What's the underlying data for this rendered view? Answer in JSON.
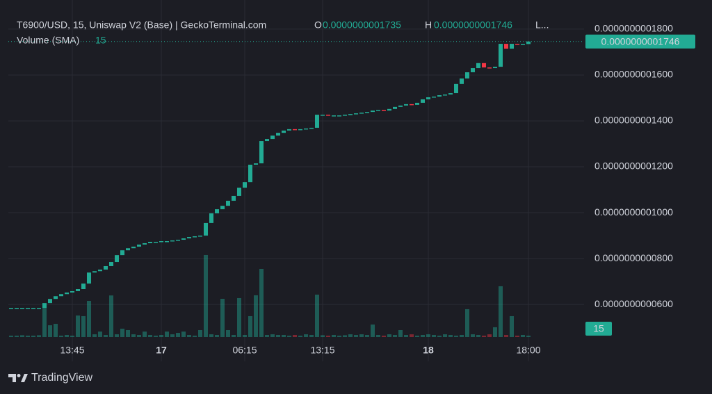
{
  "chart_data": {
    "type": "candlestick",
    "legend_text": {
      "symbol": "T6900/USD, 15, Uniswap V2 (Base) | GeckoTerminal.com",
      "o_label": "O",
      "open": "0.0000000001735",
      "h_label": "H",
      "high": "0.0000000001746",
      "l_label": "L...",
      "volume_label": "Volume (SMA)"
    },
    "last_price_label": "0.0000000001746",
    "categories": [
      null,
      null,
      null,
      null,
      null,
      null,
      null,
      null,
      null,
      null,
      null,
      "13:45",
      null,
      null,
      null,
      null,
      null,
      null,
      null,
      null,
      null,
      null,
      null,
      null,
      null,
      null,
      null,
      "17",
      null,
      null,
      null,
      null,
      null,
      null,
      null,
      null,
      null,
      null,
      null,
      null,
      null,
      null,
      "06:15",
      null,
      null,
      null,
      null,
      null,
      null,
      null,
      null,
      null,
      null,
      null,
      null,
      null,
      "13:15",
      null,
      null,
      null,
      null,
      null,
      null,
      null,
      null,
      null,
      null,
      null,
      null,
      null,
      null,
      null,
      null,
      null,
      null,
      "18",
      null,
      null,
      null,
      null,
      null,
      null,
      null,
      null,
      null,
      null,
      null,
      null,
      null,
      null,
      null,
      null,
      null,
      "18:00"
    ],
    "open": [
      5.85e-11,
      5.85e-11,
      5.85e-11,
      5.85e-11,
      5.85e-11,
      5.85e-11,
      5.85e-11,
      6.06e-11,
      6.24e-11,
      6.36e-11,
      6.45e-11,
      6.52e-11,
      6.58e-11,
      6.67e-11,
      6.91e-11,
      7.39e-11,
      7.45e-11,
      7.52e-11,
      7.67e-11,
      7.85e-11,
      8.15e-11,
      8.36e-11,
      8.45e-11,
      8.52e-11,
      8.61e-11,
      8.67e-11,
      8.73e-11,
      8.73e-11,
      8.76e-11,
      8.76e-11,
      8.79e-11,
      8.82e-11,
      8.88e-11,
      8.94e-11,
      8.97e-11,
      9e-11,
      9.55e-11,
      9.97e-11,
      1.015e-10,
      1.03e-10,
      1.052e-10,
      1.073e-10,
      1.109e-10,
      1.133e-10,
      1.209e-10,
      1.215e-10,
      1.312e-10,
      1.321e-10,
      1.336e-10,
      1.348e-10,
      1.358e-10,
      1.364e-10,
      1.361e-10,
      1.364e-10,
      1.367e-10,
      1.37e-10,
      1.427e-10,
      1.427e-10,
      1.424e-10,
      1.424e-10,
      1.424e-10,
      1.427e-10,
      1.43e-10,
      1.433e-10,
      1.436e-10,
      1.439e-10,
      1.445e-10,
      1.448e-10,
      1.445e-10,
      1.452e-10,
      1.461e-10,
      1.467e-10,
      1.473e-10,
      1.47e-10,
      1.479e-10,
      1.494e-10,
      1.503e-10,
      1.506e-10,
      1.512e-10,
      1.515e-10,
      1.521e-10,
      1.561e-10,
      1.585e-10,
      1.612e-10,
      1.63e-10,
      1.652e-10,
      1.633e-10,
      1.63e-10,
      1.636e-10,
      1.736e-10,
      1.715e-10,
      1.736e-10,
      1.735e-10,
      1.735e-10
    ],
    "close": [
      5.85e-11,
      5.85e-11,
      5.85e-11,
      5.85e-11,
      5.85e-11,
      5.85e-11,
      6.06e-11,
      6.24e-11,
      6.36e-11,
      6.45e-11,
      6.52e-11,
      6.58e-11,
      6.67e-11,
      6.91e-11,
      7.39e-11,
      7.45e-11,
      7.52e-11,
      7.67e-11,
      7.85e-11,
      8.15e-11,
      8.36e-11,
      8.45e-11,
      8.52e-11,
      8.61e-11,
      8.67e-11,
      8.73e-11,
      8.73e-11,
      8.76e-11,
      8.76e-11,
      8.79e-11,
      8.82e-11,
      8.88e-11,
      8.94e-11,
      8.97e-11,
      9e-11,
      9.55e-11,
      9.97e-11,
      1.015e-10,
      1.03e-10,
      1.052e-10,
      1.073e-10,
      1.109e-10,
      1.133e-10,
      1.209e-10,
      1.215e-10,
      1.312e-10,
      1.321e-10,
      1.336e-10,
      1.348e-10,
      1.358e-10,
      1.364e-10,
      1.361e-10,
      1.364e-10,
      1.367e-10,
      1.37e-10,
      1.427e-10,
      1.427e-10,
      1.424e-10,
      1.424e-10,
      1.424e-10,
      1.427e-10,
      1.43e-10,
      1.433e-10,
      1.436e-10,
      1.439e-10,
      1.445e-10,
      1.448e-10,
      1.445e-10,
      1.452e-10,
      1.461e-10,
      1.467e-10,
      1.473e-10,
      1.47e-10,
      1.479e-10,
      1.494e-10,
      1.503e-10,
      1.506e-10,
      1.512e-10,
      1.515e-10,
      1.521e-10,
      1.561e-10,
      1.585e-10,
      1.612e-10,
      1.63e-10,
      1.652e-10,
      1.633e-10,
      1.63e-10,
      1.636e-10,
      1.736e-10,
      1.715e-10,
      1.736e-10,
      1.735e-10,
      1.735e-10,
      1.746e-10
    ],
    "up_color": "#22ab94",
    "down_color": "#f23645",
    "ylim": [
      4.58e-11,
      1.927e-10
    ],
    "yticks": [
      {
        "value": 6e-11,
        "label": "0.0000000000600"
      },
      {
        "value": 8e-11,
        "label": "0.0000000000800"
      },
      {
        "value": 1e-10,
        "label": "0.0000000001000"
      },
      {
        "value": 1.2e-10,
        "label": "0.0000000001200"
      },
      {
        "value": 1.4e-10,
        "label": "0.0000000001400"
      },
      {
        "value": 1.6e-10,
        "label": "0.0000000001600"
      },
      {
        "value": 1.8e-10,
        "label": "0.0000000001800"
      }
    ],
    "grid": true,
    "volume": {
      "values": [
        15,
        15,
        20,
        15,
        15,
        20,
        370,
        130,
        146,
        15,
        23,
        15,
        238,
        231,
        400,
        30,
        60,
        23,
        460,
        30,
        92,
        77,
        30,
        23,
        60,
        23,
        15,
        23,
        60,
        30,
        46,
        60,
        23,
        15,
        77,
        908,
        30,
        23,
        423,
        77,
        23,
        431,
        23,
        231,
        462,
        754,
        23,
        30,
        23,
        23,
        15,
        23,
        15,
        30,
        23,
        469,
        20,
        15,
        23,
        15,
        20,
        30,
        23,
        30,
        23,
        138,
        23,
        15,
        30,
        23,
        77,
        23,
        30,
        15,
        23,
        30,
        23,
        15,
        30,
        23,
        15,
        23,
        308,
        30,
        23,
        15,
        30,
        108,
        562,
        23,
        231,
        15,
        23,
        15
      ],
      "ylim": [
        0,
        1000
      ]
    }
  },
  "brand": "TradingView"
}
